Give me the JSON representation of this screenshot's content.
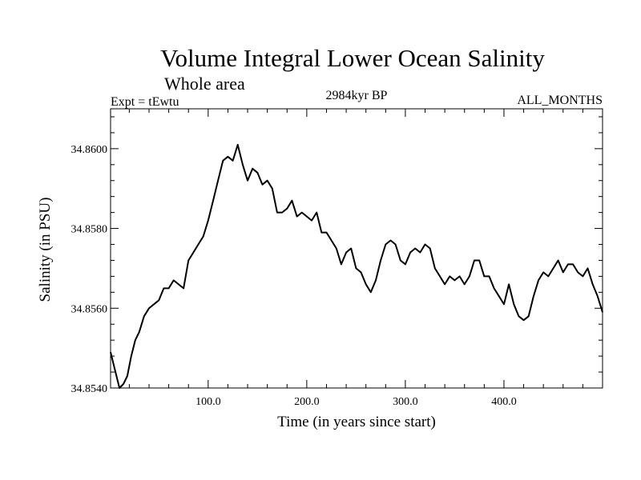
{
  "chart_data": {
    "type": "line",
    "title": "Volume Integral Lower Ocean Salinity",
    "subtitle": "Whole area",
    "left_label": "Expt = tEwtu",
    "center_label": "2984kyr BP",
    "right_label": "ALL_MONTHS",
    "xlabel": "Time (in years since start)",
    "ylabel": "Salinity (in PSU)",
    "xlim": [
      1,
      500
    ],
    "ylim": [
      34.854,
      34.861
    ],
    "x_ticks": [
      100,
      200,
      300,
      400
    ],
    "x_tick_labels": [
      "100.0",
      "200.0",
      "300.0",
      "400.0"
    ],
    "y_ticks": [
      34.854,
      34.856,
      34.858,
      34.86
    ],
    "y_tick_labels": [
      "34.8540",
      "34.8560",
      "34.8580",
      "34.8600"
    ],
    "series": [
      {
        "name": "salinity",
        "x": [
          1,
          5,
          10,
          14,
          18,
          22,
          26,
          30,
          35,
          40,
          45,
          50,
          55,
          60,
          65,
          70,
          75,
          80,
          85,
          90,
          95,
          100,
          105,
          110,
          115,
          120,
          125,
          130,
          135,
          140,
          145,
          150,
          155,
          160,
          165,
          170,
          175,
          180,
          185,
          190,
          195,
          200,
          205,
          210,
          215,
          220,
          225,
          230,
          235,
          240,
          245,
          250,
          255,
          260,
          265,
          270,
          275,
          280,
          285,
          290,
          295,
          300,
          305,
          310,
          315,
          320,
          325,
          330,
          335,
          340,
          345,
          350,
          355,
          360,
          365,
          370,
          375,
          380,
          385,
          390,
          395,
          400,
          405,
          410,
          415,
          420,
          425,
          430,
          435,
          440,
          445,
          450,
          455,
          460,
          465,
          470,
          475,
          480,
          485,
          490,
          495,
          500
        ],
        "y": [
          34.8549,
          34.8545,
          34.854,
          34.8541,
          34.8543,
          34.8548,
          34.8552,
          34.8554,
          34.8558,
          34.856,
          34.8561,
          34.8562,
          34.8565,
          34.8565,
          34.8567,
          34.8566,
          34.8565,
          34.8572,
          34.8574,
          34.8576,
          34.8578,
          34.8582,
          34.8587,
          34.8592,
          34.8597,
          34.8598,
          34.8597,
          34.8601,
          34.8596,
          34.8592,
          34.8595,
          34.8594,
          34.8591,
          34.8592,
          34.859,
          34.8584,
          34.8584,
          34.8585,
          34.8587,
          34.8583,
          34.8584,
          34.8583,
          34.8582,
          34.8584,
          34.8579,
          34.8579,
          34.8577,
          34.8575,
          34.8571,
          34.8574,
          34.8575,
          34.857,
          34.8569,
          34.8566,
          34.8564,
          34.8567,
          34.8572,
          34.8576,
          34.8577,
          34.8576,
          34.8572,
          34.8571,
          34.8574,
          34.8575,
          34.8574,
          34.8576,
          34.8575,
          34.857,
          34.8568,
          34.8566,
          34.8568,
          34.8567,
          34.8568,
          34.8566,
          34.8568,
          34.8572,
          34.8572,
          34.8568,
          34.8568,
          34.8565,
          34.8563,
          34.8561,
          34.8566,
          34.8561,
          34.8558,
          34.8557,
          34.8558,
          34.8563,
          34.8567,
          34.8569,
          34.8568,
          34.857,
          34.8572,
          34.8569,
          34.8571,
          34.8571,
          34.8569,
          34.8568,
          34.857,
          34.8566,
          34.8563,
          34.8559
        ]
      }
    ]
  }
}
